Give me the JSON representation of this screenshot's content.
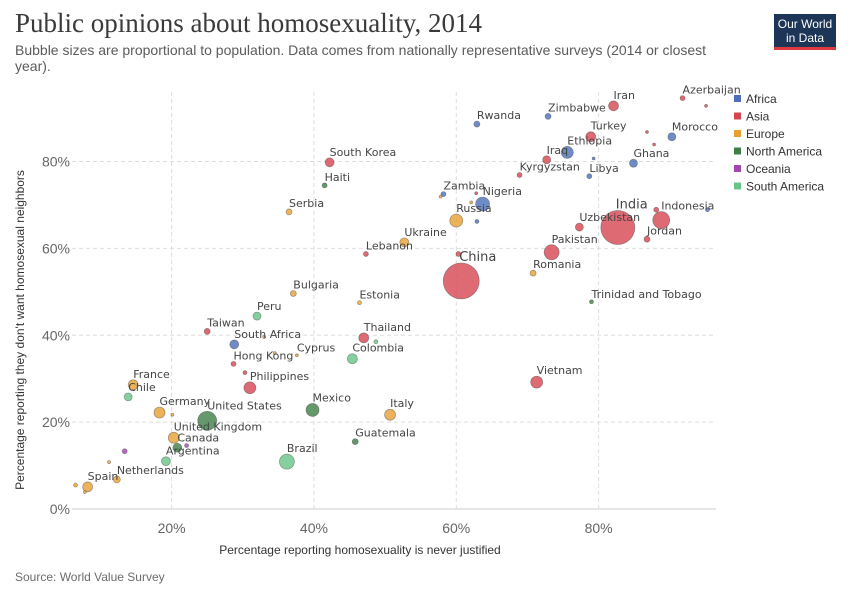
{
  "header": {
    "title": "Public opinions about homosexuality, 2014",
    "subtitle": "Bubble sizes are proportional to population. Data comes from nationally representative surveys (2014 or closest year).",
    "logo_line1": "Our World",
    "logo_line2": "in Data",
    "source": "Source: World Value Survey"
  },
  "colors": {
    "Africa": "#4c6fb8",
    "Asia": "#d64550",
    "Europe": "#e8a033",
    "North America": "#3f7f47",
    "Oceania": "#a347b0",
    "South America": "#66c487"
  },
  "chart_data": {
    "type": "scatter",
    "xlabel": "Percentage reporting homosexuality is never justified",
    "ylabel": "Percentage reporting they don't want homosexual neighbors",
    "xlim": [
      6,
      96.5
    ],
    "ylim": [
      0,
      96
    ],
    "x_ticks": [
      20,
      40,
      60,
      80
    ],
    "y_ticks": [
      0,
      20,
      40,
      60,
      80
    ],
    "tick_format": "{v}%",
    "grid": true,
    "legend_position": "right",
    "legend": [
      "Africa",
      "Asia",
      "Europe",
      "North America",
      "Oceania",
      "South America"
    ],
    "points": [
      {
        "label": "Rwanda",
        "x": 62.9,
        "y": 88.6,
        "r": 3,
        "region": "Africa"
      },
      {
        "label": "Zimbabwe",
        "x": 72.9,
        "y": 90.4,
        "r": 3,
        "region": "Africa"
      },
      {
        "label": "Iran",
        "x": 82.1,
        "y": 92.8,
        "r": 5,
        "region": "Asia"
      },
      {
        "label": "Azerbaijan",
        "x": 91.8,
        "y": 94.6,
        "r": 2.5,
        "region": "Asia"
      },
      {
        "label": "",
        "x": 95.1,
        "y": 92.8,
        "r": 1.5,
        "region": "Asia"
      },
      {
        "label": "Turkey",
        "x": 78.9,
        "y": 85.7,
        "r": 5,
        "region": "Asia"
      },
      {
        "label": "",
        "x": 86.8,
        "y": 86.8,
        "r": 1.5,
        "region": "Asia"
      },
      {
        "label": "Morocco",
        "x": 90.3,
        "y": 85.7,
        "r": 4,
        "region": "Africa"
      },
      {
        "label": "",
        "x": 87.8,
        "y": 83.9,
        "r": 1.5,
        "region": "Asia"
      },
      {
        "label": "Ethiopia",
        "x": 75.6,
        "y": 82.1,
        "r": 6,
        "region": "Africa"
      },
      {
        "label": "Iraq",
        "x": 72.7,
        "y": 80.4,
        "r": 4,
        "region": "Asia"
      },
      {
        "label": "",
        "x": 79.3,
        "y": 80.7,
        "r": 1.5,
        "region": "Africa"
      },
      {
        "label": "Ghana",
        "x": 84.9,
        "y": 79.6,
        "r": 4,
        "region": "Africa"
      },
      {
        "label": "South Korea",
        "x": 42.2,
        "y": 79.8,
        "r": 4.5,
        "region": "Asia"
      },
      {
        "label": "Kyrgyzstan",
        "x": 68.9,
        "y": 76.9,
        "r": 2.5,
        "region": "Asia"
      },
      {
        "label": "Libya",
        "x": 78.7,
        "y": 76.6,
        "r": 2.5,
        "region": "Africa"
      },
      {
        "label": "Haiti",
        "x": 41.5,
        "y": 74.5,
        "r": 2.5,
        "region": "North America"
      },
      {
        "label": "Zambia",
        "x": 58.2,
        "y": 72.5,
        "r": 2.5,
        "region": "Africa"
      },
      {
        "label": "",
        "x": 57.8,
        "y": 71.9,
        "r": 1.5,
        "region": "Europe"
      },
      {
        "label": "Nigeria",
        "x": 63.7,
        "y": 70.2,
        "r": 7,
        "region": "Africa"
      },
      {
        "label": "",
        "x": 62.1,
        "y": 70.6,
        "r": 1.5,
        "region": "Europe"
      },
      {
        "label": "",
        "x": 62.8,
        "y": 72.7,
        "r": 1.5,
        "region": "Asia"
      },
      {
        "label": "Serbia",
        "x": 36.5,
        "y": 68.4,
        "r": 3,
        "region": "Europe"
      },
      {
        "label": "Russia",
        "x": 60.0,
        "y": 66.4,
        "r": 6.5,
        "region": "Europe"
      },
      {
        "label": "",
        "x": 62.9,
        "y": 66.2,
        "r": 2,
        "region": "Africa"
      },
      {
        "label": "Indonesia",
        "x": 88.8,
        "y": 66.5,
        "r": 8.5,
        "region": "Asia"
      },
      {
        "label": "",
        "x": 88.1,
        "y": 68.9,
        "r": 2.5,
        "region": "Asia"
      },
      {
        "label": "",
        "x": 95.3,
        "y": 68.9,
        "r": 2,
        "region": "Africa"
      },
      {
        "label": "India",
        "x": 82.7,
        "y": 64.8,
        "r": 17,
        "region": "Asia"
      },
      {
        "label": "Uzbekistan",
        "x": 77.3,
        "y": 64.9,
        "r": 4,
        "region": "Asia"
      },
      {
        "label": "Jordan",
        "x": 86.8,
        "y": 62.1,
        "r": 3,
        "region": "Asia"
      },
      {
        "label": "Ukraine",
        "x": 52.7,
        "y": 61.4,
        "r": 4.5,
        "region": "Europe"
      },
      {
        "label": "Lebanon",
        "x": 47.3,
        "y": 58.7,
        "r": 2.5,
        "region": "Asia"
      },
      {
        "label": "Pakistan",
        "x": 73.4,
        "y": 59.1,
        "r": 7.5,
        "region": "Asia"
      },
      {
        "label": "",
        "x": 60.3,
        "y": 58.7,
        "r": 2.5,
        "region": "Asia"
      },
      {
        "label": "China",
        "x": 60.7,
        "y": 52.5,
        "r": 18,
        "region": "Asia"
      },
      {
        "label": "Romania",
        "x": 70.8,
        "y": 54.3,
        "r": 3,
        "region": "Europe"
      },
      {
        "label": "Bulgaria",
        "x": 37.1,
        "y": 49.6,
        "r": 3,
        "region": "Europe"
      },
      {
        "label": "Trinidad and Tobago",
        "x": 79.0,
        "y": 47.7,
        "r": 2,
        "region": "North America"
      },
      {
        "label": "Estonia",
        "x": 46.4,
        "y": 47.5,
        "r": 2,
        "region": "Europe"
      },
      {
        "label": "Peru",
        "x": 32.0,
        "y": 44.4,
        "r": 4,
        "region": "South America"
      },
      {
        "label": "Taiwan",
        "x": 25.0,
        "y": 40.9,
        "r": 3,
        "region": "Asia"
      },
      {
        "label": "Thailand",
        "x": 47.0,
        "y": 39.4,
        "r": 5,
        "region": "Asia"
      },
      {
        "label": "",
        "x": 48.7,
        "y": 38.5,
        "r": 2,
        "region": "South America"
      },
      {
        "label": "South Africa",
        "x": 28.8,
        "y": 37.9,
        "r": 4.5,
        "region": "Africa"
      },
      {
        "label": "",
        "x": 33.0,
        "y": 39.6,
        "r": 1.5,
        "region": "Europe"
      },
      {
        "label": "Cyprus",
        "x": 37.6,
        "y": 35.4,
        "r": 1.5,
        "region": "Europe"
      },
      {
        "label": "Hong Kong",
        "x": 28.7,
        "y": 33.4,
        "r": 2.5,
        "region": "Asia"
      },
      {
        "label": "Colombia",
        "x": 45.4,
        "y": 34.6,
        "r": 5,
        "region": "South America"
      },
      {
        "label": "",
        "x": 34.5,
        "y": 35.9,
        "r": 1.5,
        "region": "Europe"
      },
      {
        "label": "",
        "x": 30.3,
        "y": 31.4,
        "r": 2,
        "region": "Asia"
      },
      {
        "label": "Philippines",
        "x": 31.0,
        "y": 27.9,
        "r": 6,
        "region": "Asia"
      },
      {
        "label": "Vietnam",
        "x": 71.3,
        "y": 29.2,
        "r": 6,
        "region": "Asia"
      },
      {
        "label": "France",
        "x": 14.6,
        "y": 28.6,
        "r": 5,
        "region": "Europe"
      },
      {
        "label": "Chile",
        "x": 13.9,
        "y": 25.8,
        "r": 4,
        "region": "South America"
      },
      {
        "label": "Germany",
        "x": 18.3,
        "y": 22.2,
        "r": 5.5,
        "region": "Europe"
      },
      {
        "label": "",
        "x": 20.1,
        "y": 21.7,
        "r": 1.5,
        "region": "Europe"
      },
      {
        "label": "United States",
        "x": 25.0,
        "y": 20.3,
        "r": 9.5,
        "region": "North America"
      },
      {
        "label": "Mexico",
        "x": 39.8,
        "y": 22.8,
        "r": 6.5,
        "region": "North America"
      },
      {
        "label": "Italy",
        "x": 50.7,
        "y": 21.7,
        "r": 5.5,
        "region": "Europe"
      },
      {
        "label": "United Kingdom",
        "x": 20.3,
        "y": 16.4,
        "r": 5.5,
        "region": "Europe"
      },
      {
        "label": "Canada",
        "x": 20.8,
        "y": 14.1,
        "r": 4.5,
        "region": "North America"
      },
      {
        "label": "",
        "x": 22.1,
        "y": 14.6,
        "r": 2,
        "region": "Oceania"
      },
      {
        "label": "Guatemala",
        "x": 45.8,
        "y": 15.5,
        "r": 3,
        "region": "North America"
      },
      {
        "label": "",
        "x": 13.4,
        "y": 13.3,
        "r": 2.5,
        "region": "Oceania"
      },
      {
        "label": "Argentina",
        "x": 19.2,
        "y": 11.0,
        "r": 4.5,
        "region": "South America"
      },
      {
        "label": "Brazil",
        "x": 36.2,
        "y": 10.9,
        "r": 7.5,
        "region": "South America"
      },
      {
        "label": "",
        "x": 11.2,
        "y": 10.8,
        "r": 1.5,
        "region": "Europe"
      },
      {
        "label": "Netherlands",
        "x": 12.3,
        "y": 6.8,
        "r": 3.5,
        "region": "Europe"
      },
      {
        "label": "Spain",
        "x": 8.2,
        "y": 5.1,
        "r": 5,
        "region": "Europe"
      },
      {
        "label": "",
        "x": 6.5,
        "y": 5.5,
        "r": 2,
        "region": "Europe"
      },
      {
        "label": "",
        "x": 7.8,
        "y": 3.9,
        "r": 1.5,
        "region": "Europe"
      }
    ]
  }
}
